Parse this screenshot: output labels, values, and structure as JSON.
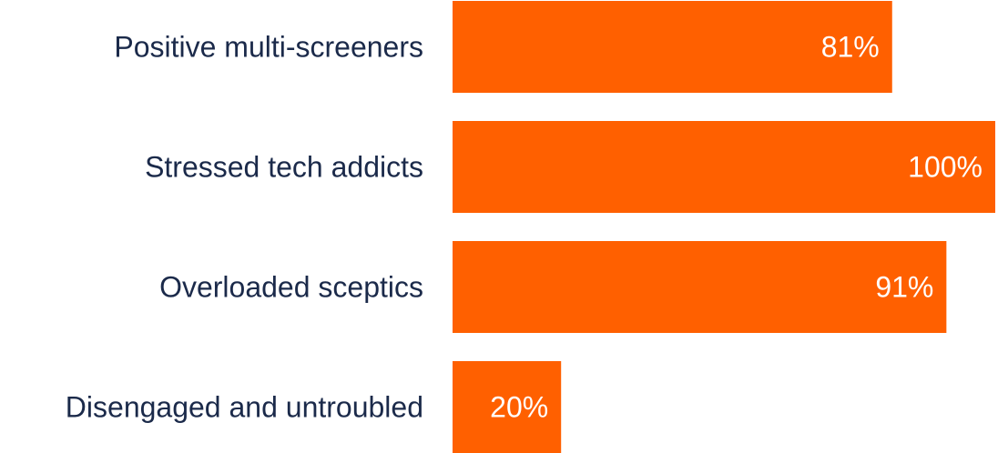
{
  "chart_data": {
    "type": "bar",
    "orientation": "horizontal",
    "categories": [
      "Positive multi-screeners",
      "Stressed tech addicts",
      "Overloaded sceptics",
      "Disengaged and untroubled"
    ],
    "values": [
      81,
      100,
      91,
      20
    ],
    "value_labels": [
      "81%",
      "100%",
      "91%",
      "20%"
    ],
    "xlim": [
      0,
      100
    ],
    "grid": false,
    "legend": "none",
    "colors": {
      "bar": "#ff6000",
      "category_text": "#1b2a4a",
      "value_text": "#ffffff"
    }
  }
}
